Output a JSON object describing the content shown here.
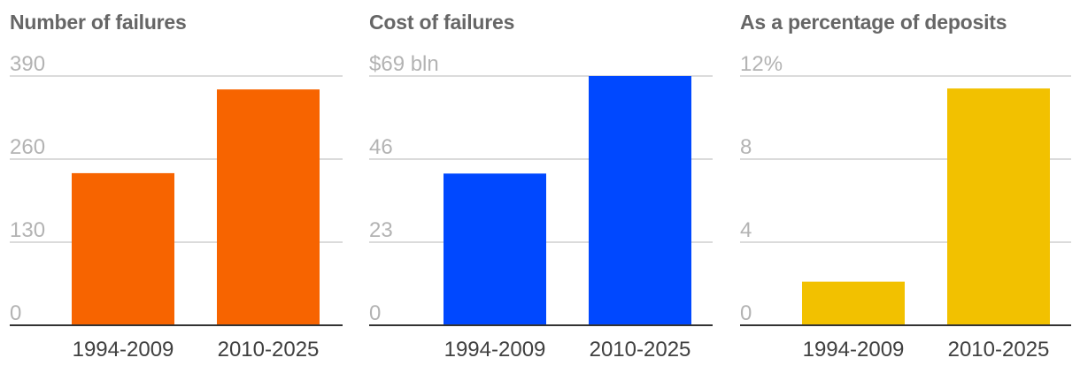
{
  "chart_data": [
    {
      "type": "bar",
      "title": "Number of failures",
      "categories": [
        "1994-2009",
        "2010-2025"
      ],
      "values": [
        238,
        369
      ],
      "ylim": [
        0,
        390
      ],
      "yticks": [
        "0",
        "130",
        "260",
        "390"
      ],
      "color": "#f76400"
    },
    {
      "type": "bar",
      "title": "Cost of failures",
      "categories": [
        "1994-2009",
        "2010-2025"
      ],
      "values": [
        42,
        69
      ],
      "ylim": [
        0,
        69
      ],
      "yticks": [
        "0",
        "23",
        "46",
        "$69 bln"
      ],
      "color": "#0048ff"
    },
    {
      "type": "bar",
      "title": "As a percentage of deposits",
      "categories": [
        "1994-2009",
        "2010-2025"
      ],
      "values": [
        2.1,
        11.4
      ],
      "ylim": [
        0,
        12
      ],
      "yticks": [
        "0",
        "4",
        "8",
        "12%"
      ],
      "color": "#f2c100"
    }
  ]
}
